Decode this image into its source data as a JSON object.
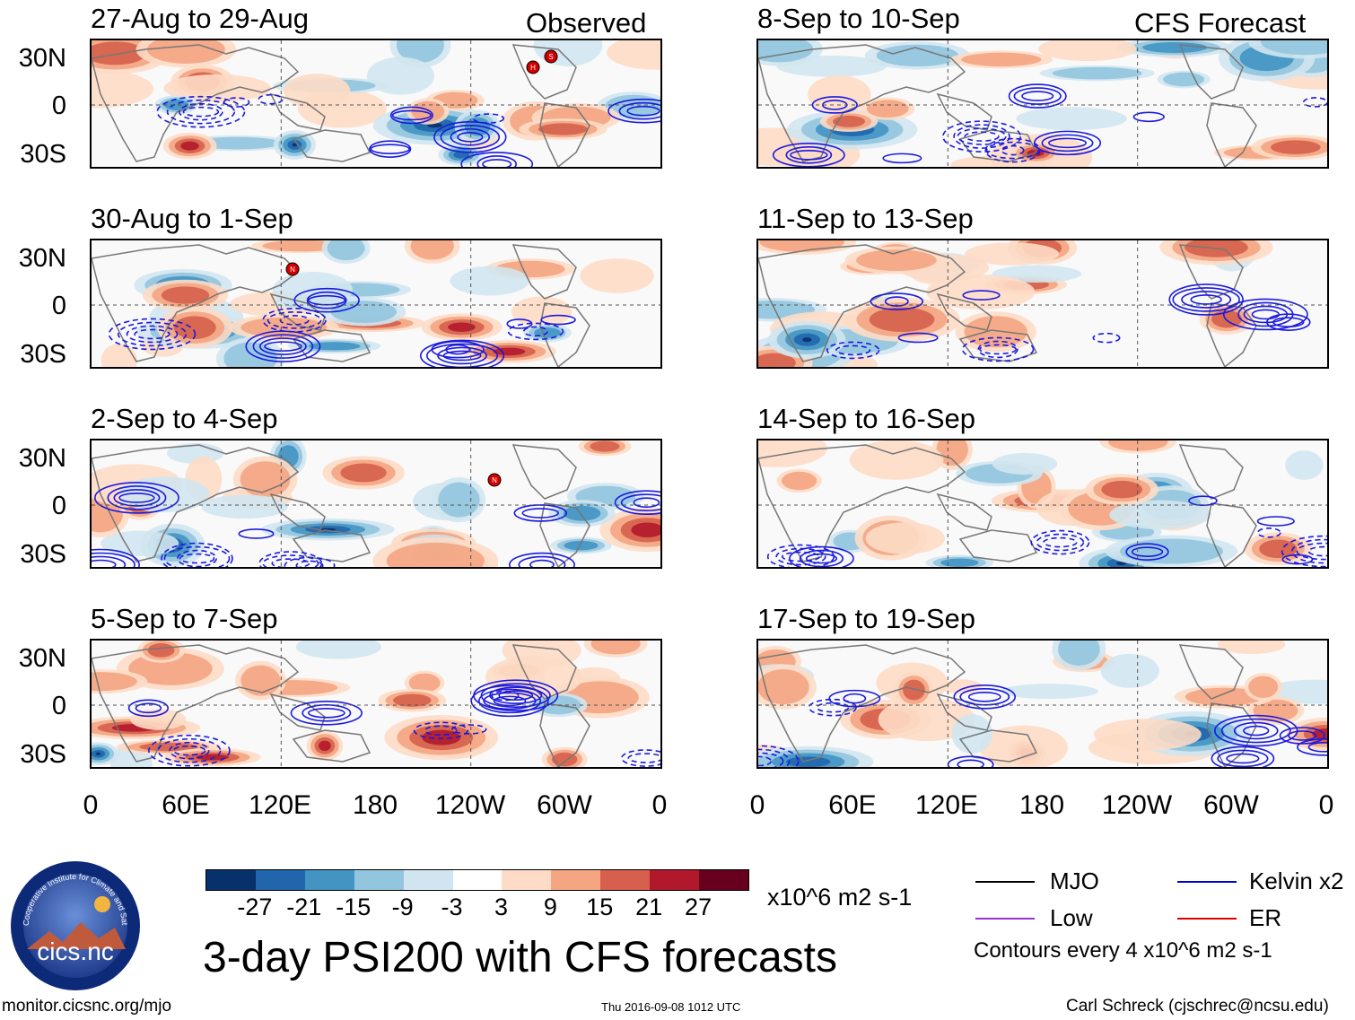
{
  "headers": {
    "observed": "Observed",
    "forecast": "CFS Forecast"
  },
  "y_ticks": [
    "30N",
    "0",
    "30S"
  ],
  "x_ticks": [
    "0",
    "60E",
    "120E",
    "180",
    "120W",
    "60W",
    "0"
  ],
  "panels_left": [
    {
      "title": "27-Aug to 29-Aug"
    },
    {
      "title": "30-Aug to 1-Sep"
    },
    {
      "title": "2-Sep to 4-Sep"
    },
    {
      "title": "5-Sep to 7-Sep"
    }
  ],
  "panels_right": [
    {
      "title": "8-Sep to 10-Sep"
    },
    {
      "title": "11-Sep to 13-Sep"
    },
    {
      "title": "14-Sep to 16-Sep"
    },
    {
      "title": "17-Sep to 19-Sep"
    }
  ],
  "storm_markers": [
    {
      "panel": 0,
      "labels": [
        "H",
        "S"
      ]
    },
    {
      "panel": 1,
      "labels": [
        "N"
      ]
    },
    {
      "panel": 2,
      "labels": [
        "N"
      ]
    }
  ],
  "colorbar": {
    "colors": [
      "#08306b",
      "#2166ac",
      "#4393c3",
      "#92c5de",
      "#d1e5f0",
      "#ffffff",
      "#fddbc7",
      "#f4a582",
      "#d6604d",
      "#b2182b",
      "#67001f"
    ],
    "labels": [
      "-27",
      "-21",
      "-15",
      "-9",
      "-3",
      "3",
      "9",
      "15",
      "21",
      "27"
    ],
    "units": "x10^6 m2 s-1"
  },
  "legend": {
    "items": [
      {
        "label": "MJO",
        "color": "#000000"
      },
      {
        "label": "Kelvin x2",
        "color": "#0000cc"
      },
      {
        "label": "Low",
        "color": "#9933cc"
      },
      {
        "label": "ER",
        "color": "#dd0000"
      }
    ],
    "contours_note": "Contours every 4 x10^6 m2 s-1"
  },
  "main_title": "3-day PSI200 with CFS forecasts",
  "logo": {
    "text": "cics.nc",
    "ring_text": "Cooperative Institute for Climate and Satellites"
  },
  "footer": {
    "url": "monitor.cicsnc.org/mjo",
    "timestamp": "Thu 2016-09-08 1012 UTC",
    "credit": "Carl Schreck (cjschrec@ncsu.edu)"
  }
}
